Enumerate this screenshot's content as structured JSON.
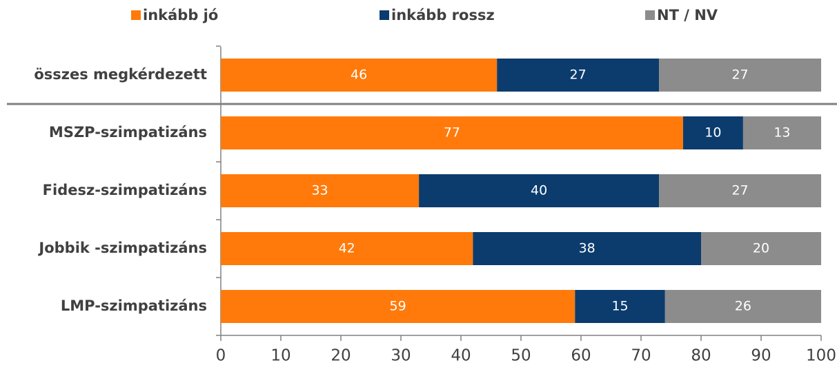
{
  "chart_data": {
    "type": "stacked_barh",
    "categories": [
      "összes megkérdezett",
      "MSZP-szimpatizáns",
      "Fidesz-szimpatizáns",
      "Jobbik -szimpatizáns",
      "LMP-szimpatizáns"
    ],
    "series": [
      {
        "name": "inkább jó",
        "color": "#ff7a0a",
        "values": [
          46,
          77,
          33,
          42,
          59
        ]
      },
      {
        "name": "inkább rossz",
        "color": "#0c3c6e",
        "values": [
          27,
          10,
          40,
          38,
          15
        ]
      },
      {
        "name": "NT / NV",
        "color": "#8c8c8c",
        "values": [
          27,
          13,
          27,
          20,
          26
        ]
      }
    ],
    "xlim": [
      0,
      100
    ],
    "xticks": [
      0,
      10,
      20,
      30,
      40,
      50,
      60,
      70,
      80,
      90,
      100
    ]
  }
}
